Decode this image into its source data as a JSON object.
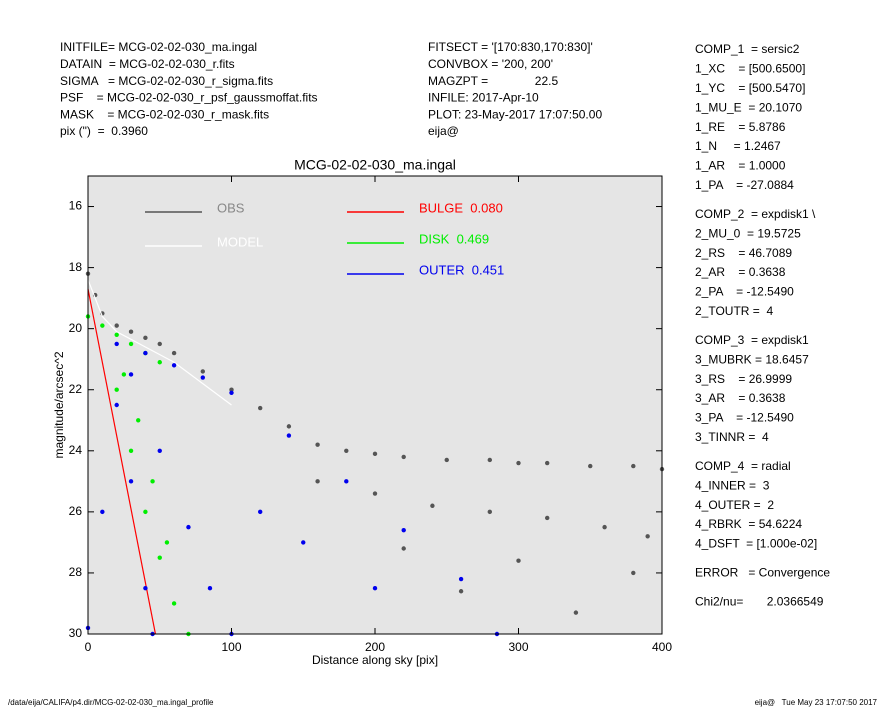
{
  "header": {
    "left": [
      "INITFILE= MCG-02-02-030_ma.ingal",
      "DATAIN  = MCG-02-02-030_r.fits",
      "SIGMA   = MCG-02-02-030_r_sigma.fits",
      "PSF    = MCG-02-02-030_r_psf_gaussmoffat.fits",
      "MASK    = MCG-02-02-030_r_mask.fits",
      "pix (\")  =  0.3960"
    ],
    "center": [
      "FITSECT = '[170:830,170:830]'",
      "CONVBOX = '200, 200'",
      "MAGZPT =              22.5",
      "INFILE: 2017-Apr-10",
      "PLOT: 23-May-2017 17:07:50.00",
      "eija@"
    ]
  },
  "params": [
    [
      "COMP_1  = sersic2",
      "1_XC    = [500.6500]",
      "1_YC    = [500.5470]",
      "1_MU_E  = 20.1070",
      "1_RE    = 5.8786",
      "1_N     = 1.2467",
      "1_AR    = 1.0000",
      "1_PA    = -27.0884"
    ],
    [
      "COMP_2  = expdisk1 \\",
      "2_MU_0  = 19.5725",
      "2_RS    = 46.7089",
      "2_AR    = 0.3638",
      "2_PA    = -12.5490",
      "2_TOUTR =  4"
    ],
    [
      "COMP_3  = expdisk1",
      "3_MUBRK = 18.6457",
      "3_RS    = 26.9999",
      "3_AR    = 0.3638",
      "3_PA    = -12.5490",
      "3_TINNR =  4"
    ],
    [
      "COMP_4  = radial",
      "4_INNER =  3",
      "4_OUTER =  2",
      "4_RBRK  = 54.6224",
      "4_DSFT  = [1.000e-02]"
    ],
    [
      "ERROR   = Convergence"
    ],
    [
      "Chi2/nu=       2.0366549"
    ]
  ],
  "footer": {
    "left": "/data/eija/CALIFA/p4.dir/MCG-02-02-030_ma.ingal_profile",
    "right": "eija@   Tue May 23 17:07:50 2017"
  },
  "chart_data": {
    "type": "scatter",
    "title": "MCG-02-02-030_ma.ingal",
    "x_label": "Distance along sky [pix]",
    "y_label": "magnitude/arcsec^2",
    "xlim": [
      0,
      400
    ],
    "ylim": [
      30,
      15
    ],
    "xticks": [
      0,
      100,
      200,
      300,
      400
    ],
    "yticks": [
      16,
      18,
      20,
      22,
      24,
      26,
      28,
      30
    ],
    "background": "#e5e5e5",
    "series": [
      {
        "name": "OBS",
        "color": "#555555",
        "mode": "points",
        "x": [
          0,
          5,
          10,
          20,
          30,
          40,
          50,
          60,
          80,
          100,
          120,
          140,
          160,
          180,
          200,
          220,
          250,
          280,
          300,
          320,
          350,
          380,
          400,
          160,
          200,
          240,
          280,
          320,
          360,
          390,
          220,
          300,
          380,
          260,
          340
        ],
        "values": [
          18.2,
          18.9,
          19.5,
          19.9,
          20.1,
          20.3,
          20.5,
          20.8,
          21.4,
          22.0,
          22.6,
          23.2,
          23.8,
          24.0,
          24.1,
          24.2,
          24.3,
          24.3,
          24.4,
          24.4,
          24.5,
          24.5,
          24.6,
          25.0,
          25.4,
          25.8,
          26.0,
          26.2,
          26.5,
          26.8,
          27.2,
          27.6,
          28.0,
          28.6,
          29.3
        ]
      },
      {
        "name": "MODEL",
        "color": "#ffffff",
        "mode": "line",
        "x": [
          0,
          10,
          20,
          40,
          60,
          80,
          100
        ],
        "values": [
          18.4,
          19.6,
          20.1,
          20.6,
          21.1,
          21.8,
          22.5
        ]
      },
      {
        "name": "BULGE  0.080",
        "color": "#ff0000",
        "mode": "line",
        "x": [
          0,
          47
        ],
        "values": [
          18.7,
          30
        ]
      },
      {
        "name": "DISK  0.469",
        "color": "#00ee00",
        "mode": "points",
        "x": [
          0,
          10,
          20,
          30,
          40,
          50,
          20,
          30,
          40,
          50,
          60,
          70,
          25,
          35,
          45,
          55
        ],
        "values": [
          19.6,
          19.9,
          20.2,
          20.5,
          20.8,
          21.1,
          22,
          24,
          26,
          27.5,
          29,
          30,
          21.5,
          23,
          25,
          27
        ]
      },
      {
        "name": "OUTER  0.451",
        "color": "#0000ee",
        "mode": "points",
        "x": [
          20,
          40,
          60,
          80,
          100,
          140,
          180,
          220,
          260,
          285,
          30,
          50,
          70,
          85,
          100,
          0,
          10,
          20,
          30,
          40,
          45,
          150,
          200,
          120
        ],
        "values": [
          20.5,
          20.8,
          21.2,
          21.6,
          22.1,
          23.5,
          25,
          26.6,
          28.2,
          30,
          21.5,
          24,
          26.5,
          28.5,
          30,
          29.8,
          26,
          22.5,
          25,
          28.5,
          30,
          27,
          28.5,
          26
        ]
      }
    ]
  }
}
